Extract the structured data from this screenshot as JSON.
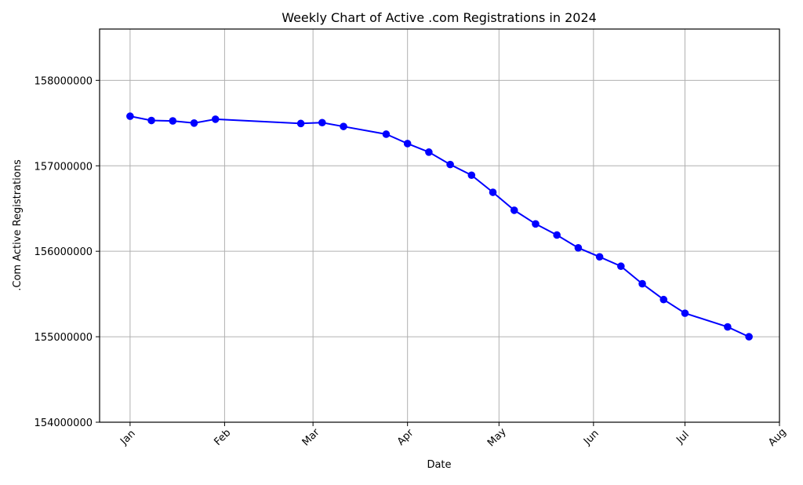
{
  "chart_data": {
    "type": "line",
    "title": "Weekly Chart of Active .com Registrations in 2024",
    "xlabel": "Date",
    "ylabel": ".Com Active Registrations",
    "x_axis_type": "date",
    "xlim": [
      "2023-12-22",
      "2024-08-01"
    ],
    "ylim": [
      154000000,
      158600000
    ],
    "x_ticks": [
      {
        "date": "2024-01-01",
        "label": "Jan"
      },
      {
        "date": "2024-02-01",
        "label": "Feb"
      },
      {
        "date": "2024-03-01",
        "label": "Mar"
      },
      {
        "date": "2024-04-01",
        "label": "Apr"
      },
      {
        "date": "2024-05-01",
        "label": "May"
      },
      {
        "date": "2024-06-01",
        "label": "Jun"
      },
      {
        "date": "2024-07-01",
        "label": "Jul"
      },
      {
        "date": "2024-08-01",
        "label": "Aug"
      }
    ],
    "y_ticks": [
      154000000,
      155000000,
      156000000,
      157000000,
      158000000
    ],
    "y_tick_labels": [
      "154000000",
      "155000000",
      "156000000",
      "157000000",
      "158000000"
    ],
    "grid": true,
    "series": [
      {
        "color": "#0000ff",
        "marker": "circle",
        "x": [
          "2024-01-01",
          "2024-01-08",
          "2024-01-15",
          "2024-01-22",
          "2024-01-29",
          "2024-02-26",
          "2024-03-04",
          "2024-03-11",
          "2024-03-25",
          "2024-04-01",
          "2024-04-08",
          "2024-04-15",
          "2024-04-22",
          "2024-04-29",
          "2024-05-06",
          "2024-05-13",
          "2024-05-20",
          "2024-05-27",
          "2024-06-03",
          "2024-06-10",
          "2024-06-17",
          "2024-06-24",
          "2024-07-01",
          "2024-07-15",
          "2024-07-22"
        ],
        "y": [
          157580000,
          157530000,
          157525000,
          157500000,
          157545000,
          157495000,
          157505000,
          157460000,
          157370000,
          157260000,
          157160000,
          157015000,
          156890000,
          156690000,
          156480000,
          156320000,
          156190000,
          156040000,
          155935000,
          155825000,
          155620000,
          155435000,
          155275000,
          155115000,
          155000000
        ]
      }
    ]
  }
}
